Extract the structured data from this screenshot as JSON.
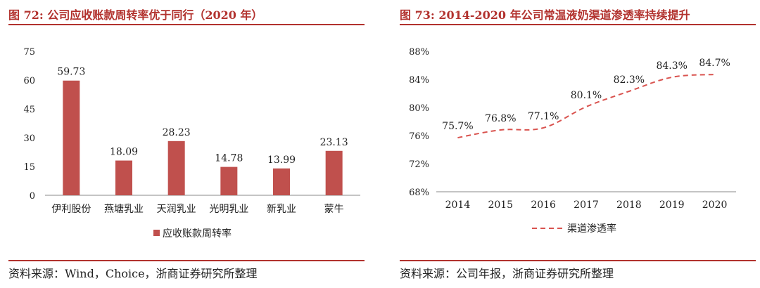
{
  "left": {
    "title": "图 72:  公司应收账款周转率优于同行（2020 年）",
    "source": "资料来源：Wind，Choice，浙商证券研究所整理"
  },
  "right": {
    "title": "图 73:  2014-2020 年公司常温液奶渠道渗透率持续提升",
    "source": "资料来源：公司年报，浙商证券研究所整理"
  },
  "colors": {
    "bar": "#c0504d",
    "line": "#d9534f",
    "rule": "#b2322e"
  },
  "chart_data": [
    {
      "type": "bar",
      "categories": [
        "伊利股份",
        "燕塘乳业",
        "天润乳业",
        "光明乳业",
        "新乳业",
        "蒙牛"
      ],
      "series": [
        {
          "name": "应收账款周转率",
          "values": [
            59.73,
            18.09,
            28.23,
            14.78,
            13.99,
            23.13
          ]
        }
      ],
      "data_labels": [
        "59.73",
        "18.09",
        "28.23",
        "14.78",
        "13.99",
        "23.13"
      ],
      "yticks": [
        "0",
        "15",
        "30",
        "45",
        "60",
        "75"
      ],
      "ylim": [
        0,
        75
      ],
      "legend_placement": "bottom"
    },
    {
      "type": "line",
      "categories": [
        "2014",
        "2015",
        "2016",
        "2017",
        "2018",
        "2019",
        "2020"
      ],
      "series": [
        {
          "name": "渠道渗透率",
          "values": [
            75.7,
            76.8,
            77.1,
            80.1,
            82.3,
            84.3,
            84.7
          ]
        }
      ],
      "data_labels": [
        "75.7%",
        "76.8%",
        "77.1%",
        "80.1%",
        "82.3%",
        "84.3%",
        "84.7%"
      ],
      "yticks": [
        "68%",
        "72%",
        "76%",
        "80%",
        "84%",
        "88%"
      ],
      "ylim": [
        68,
        88
      ],
      "line_style": "dashed",
      "legend_placement": "bottom"
    }
  ]
}
